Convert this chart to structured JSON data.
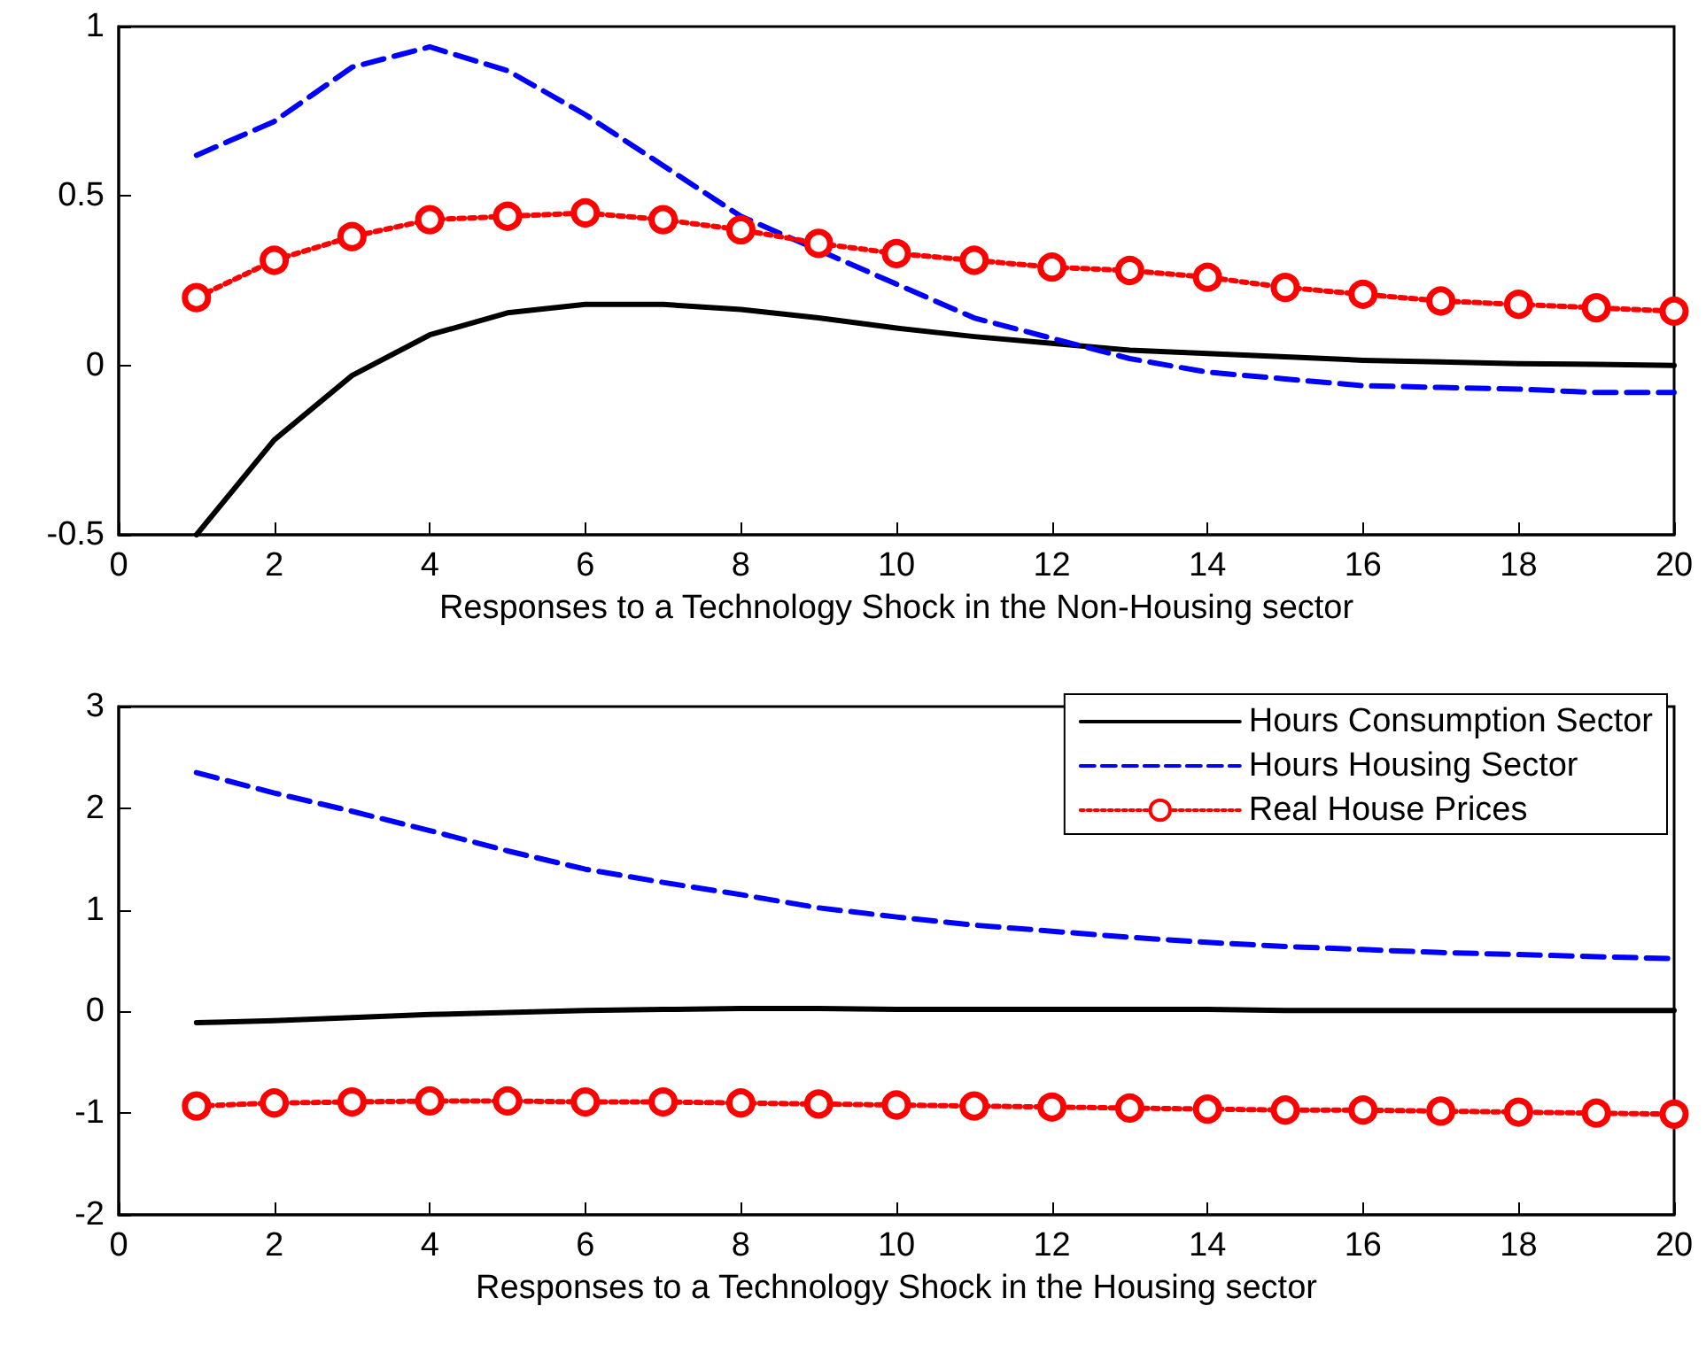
{
  "chart_data": [
    {
      "type": "line",
      "xlabel": "Responses to a Technology Shock in the Non-Housing sector",
      "x": [
        1,
        2,
        3,
        4,
        5,
        6,
        7,
        8,
        9,
        10,
        11,
        12,
        13,
        14,
        15,
        16,
        17,
        18,
        19,
        20
      ],
      "xlim": [
        0,
        20
      ],
      "xticks": [
        0,
        2,
        4,
        6,
        8,
        10,
        12,
        14,
        16,
        18,
        20
      ],
      "ylim": [
        -0.5,
        1
      ],
      "yticks": [
        -0.5,
        0,
        0.5,
        1
      ],
      "grid": false,
      "legend": false,
      "series": [
        {
          "color": "#000000",
          "line_style": "solid",
          "marker": "none",
          "values": [
            -0.5,
            -0.22,
            -0.03,
            0.09,
            0.155,
            0.18,
            0.18,
            0.165,
            0.14,
            0.11,
            0.085,
            0.065,
            0.045,
            0.035,
            0.025,
            0.015,
            0.01,
            0.005,
            0.003,
            0
          ]
        },
        {
          "color": "#0000ff",
          "line_style": "dashed",
          "marker": "none",
          "values": [
            0.62,
            0.72,
            0.88,
            0.94,
            0.87,
            0.74,
            0.59,
            0.44,
            0.34,
            0.24,
            0.14,
            0.08,
            0.02,
            -0.02,
            -0.04,
            -0.06,
            -0.065,
            -0.07,
            -0.08,
            -0.08
          ]
        },
        {
          "color": "#ff0000",
          "line_style": "dotted",
          "marker": "circle",
          "values": [
            0.2,
            0.31,
            0.38,
            0.43,
            0.44,
            0.45,
            0.43,
            0.4,
            0.36,
            0.33,
            0.31,
            0.29,
            0.28,
            0.26,
            0.23,
            0.21,
            0.19,
            0.18,
            0.17,
            0.16
          ]
        }
      ]
    },
    {
      "type": "line",
      "xlabel": "Responses to a Technology Shock in the Housing sector",
      "x": [
        1,
        2,
        3,
        4,
        5,
        6,
        7,
        8,
        9,
        10,
        11,
        12,
        13,
        14,
        15,
        16,
        17,
        18,
        19,
        20
      ],
      "xlim": [
        0,
        20
      ],
      "xticks": [
        0,
        2,
        4,
        6,
        8,
        10,
        12,
        14,
        16,
        18,
        20
      ],
      "ylim": [
        -2,
        3
      ],
      "yticks": [
        -2,
        -1,
        0,
        1,
        2,
        3
      ],
      "grid": false,
      "legend": "top right",
      "series": [
        {
          "name": "Hours Consumption Sector",
          "color": "#000000",
          "line_style": "solid",
          "marker": "none",
          "values": [
            -0.11,
            -0.09,
            -0.06,
            -0.03,
            -0.01,
            0.01,
            0.02,
            0.03,
            0.03,
            0.02,
            0.02,
            0.02,
            0.02,
            0.02,
            0.01,
            0.01,
            0.01,
            0.01,
            0.01,
            0.01
          ]
        },
        {
          "name": "Hours Housing Sector",
          "color": "#0000ff",
          "line_style": "dashed",
          "marker": "none",
          "values": [
            2.35,
            2.15,
            1.97,
            1.78,
            1.58,
            1.4,
            1.27,
            1.15,
            1.02,
            0.93,
            0.85,
            0.79,
            0.73,
            0.68,
            0.64,
            0.61,
            0.58,
            0.56,
            0.54,
            0.52
          ]
        },
        {
          "name": "Real House Prices",
          "color": "#ff0000",
          "line_style": "dotted",
          "marker": "circle",
          "values": [
            -0.93,
            -0.9,
            -0.89,
            -0.88,
            -0.88,
            -0.89,
            -0.89,
            -0.9,
            -0.91,
            -0.92,
            -0.93,
            -0.94,
            -0.95,
            -0.96,
            -0.97,
            -0.97,
            -0.98,
            -0.99,
            -1.0,
            -1.01
          ]
        }
      ]
    }
  ]
}
